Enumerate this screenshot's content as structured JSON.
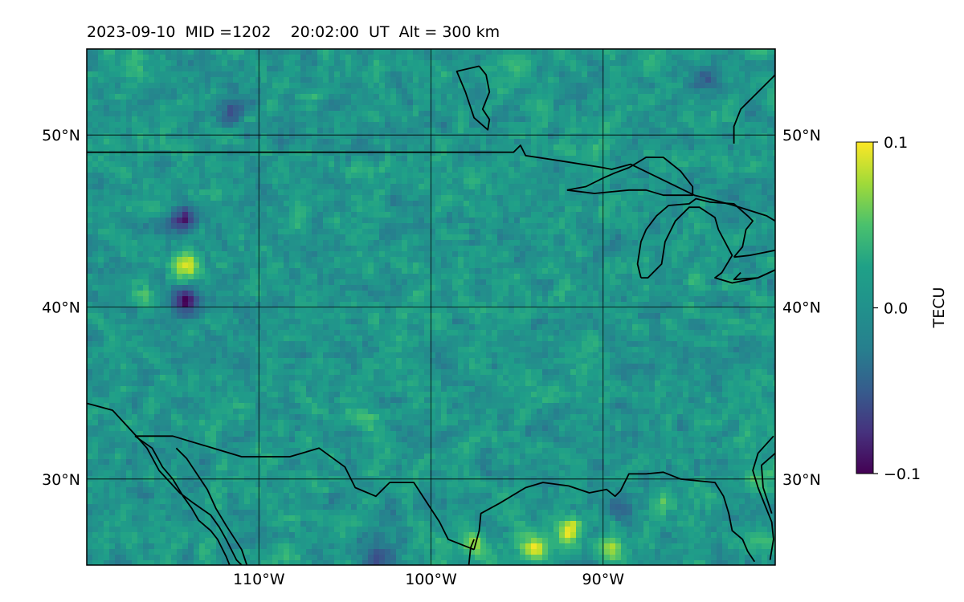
{
  "header": {
    "title": "2023-09-10  MID =1202    20:02:00  UT  Alt = 300 km"
  },
  "chart_data": {
    "type": "heatmap",
    "title": "2023-09-10  MID =1202    20:02:00  UT  Alt = 300 km",
    "map_extent": {
      "lon": [
        -120,
        -80
      ],
      "lat": [
        25,
        55
      ]
    },
    "lon_ticks": [
      {
        "value": -110,
        "label": "110°W"
      },
      {
        "value": -100,
        "label": "100°W"
      },
      {
        "value": -90,
        "label": "90°W"
      }
    ],
    "lat_ticks": [
      {
        "value": 30,
        "label": "30°N"
      },
      {
        "value": 40,
        "label": "40°N"
      },
      {
        "value": 50,
        "label": "50°N"
      }
    ],
    "grid": true,
    "colormap": "viridis",
    "colorbar": {
      "label": "TECU",
      "range": [
        -0.1,
        0.1
      ],
      "ticks": [
        {
          "value": 0.1,
          "label": "0.1"
        },
        {
          "value": 0.0,
          "label": "0.0"
        },
        {
          "value": -0.1,
          "label": "−0.1"
        }
      ]
    },
    "background_value": 0.005,
    "hotspots": [
      {
        "lon": -92.0,
        "lat": 27.0,
        "value": 0.1
      },
      {
        "lon": -94.0,
        "lat": 26.0,
        "value": 0.1
      },
      {
        "lon": -89.5,
        "lat": 26.0,
        "value": 0.08
      },
      {
        "lon": -97.5,
        "lat": 26.2,
        "value": 0.07
      },
      {
        "lon": -114.2,
        "lat": 42.4,
        "value": 0.09
      },
      {
        "lon": -114.3,
        "lat": 40.4,
        "value": -0.1
      },
      {
        "lon": -114.4,
        "lat": 45.1,
        "value": -0.08
      },
      {
        "lon": -111.5,
        "lat": 51.3,
        "value": -0.05
      },
      {
        "lon": -84.0,
        "lat": 53.3,
        "value": -0.05
      },
      {
        "lon": -103.0,
        "lat": 25.5,
        "value": -0.06
      },
      {
        "lon": -108.5,
        "lat": 25.4,
        "value": 0.04
      },
      {
        "lon": -116.5,
        "lat": 40.7,
        "value": 0.05
      },
      {
        "lon": -117.0,
        "lat": 53.7,
        "value": 0.04
      },
      {
        "lon": -95.0,
        "lat": 54.0,
        "value": 0.03
      },
      {
        "lon": -81.0,
        "lat": 30.0,
        "value": 0.05
      },
      {
        "lon": -80.6,
        "lat": 26.5,
        "value": 0.05
      },
      {
        "lon": -89.0,
        "lat": 28.5,
        "value": -0.04
      },
      {
        "lon": -86.5,
        "lat": 28.5,
        "value": 0.05
      },
      {
        "lon": -104.0,
        "lat": 33.5,
        "value": 0.04
      },
      {
        "lon": -97.0,
        "lat": 39.5,
        "value": 0.03
      }
    ],
    "coastlines": [
      [
        [
          -120,
          34.4
        ],
        [
          -118.5,
          34.0
        ],
        [
          -117.3,
          32.7
        ],
        [
          -116.5,
          31.8
        ],
        [
          -115.8,
          30.5
        ],
        [
          -114.6,
          29.2
        ],
        [
          -113.8,
          28.6
        ],
        [
          -112.8,
          27.9
        ],
        [
          -112.3,
          27.2
        ],
        [
          -111.9,
          26.5
        ],
        [
          -111.3,
          25.3
        ],
        [
          -111.0,
          25.0
        ]
      ],
      [
        [
          -117.2,
          32.5
        ],
        [
          -116.2,
          31.8
        ],
        [
          -115.6,
          30.7
        ],
        [
          -115.0,
          30.0
        ],
        [
          -114.4,
          29.0
        ],
        [
          -113.9,
          28.3
        ],
        [
          -113.5,
          27.6
        ],
        [
          -112.8,
          27.0
        ],
        [
          -112.4,
          26.5
        ],
        [
          -111.9,
          25.5
        ],
        [
          -111.7,
          25.0
        ]
      ],
      [
        [
          -114.8,
          31.8
        ],
        [
          -114.2,
          31.2
        ],
        [
          -113.6,
          30.3
        ],
        [
          -113.0,
          29.4
        ],
        [
          -112.5,
          28.3
        ],
        [
          -111.9,
          27.3
        ],
        [
          -111.0,
          25.9
        ],
        [
          -110.7,
          25.0
        ]
      ],
      [
        [
          -117.2,
          32.5
        ],
        [
          -115.0,
          32.5
        ],
        [
          -111.0,
          31.3
        ],
        [
          -108.2,
          31.3
        ],
        [
          -106.5,
          31.8
        ],
        [
          -105.0,
          30.7
        ],
        [
          -104.4,
          29.5
        ],
        [
          -103.2,
          29.0
        ],
        [
          -102.4,
          29.8
        ],
        [
          -101.0,
          29.8
        ],
        [
          -99.5,
          27.5
        ],
        [
          -99.0,
          26.5
        ],
        [
          -97.5,
          25.9
        ]
      ],
      [
        [
          -97.5,
          25.9
        ],
        [
          -97.2,
          27.0
        ],
        [
          -97.1,
          28.0
        ],
        [
          -96.0,
          28.6
        ],
        [
          -94.5,
          29.5
        ],
        [
          -93.5,
          29.8
        ],
        [
          -92.0,
          29.6
        ],
        [
          -90.8,
          29.2
        ],
        [
          -89.8,
          29.4
        ],
        [
          -89.3,
          29.0
        ],
        [
          -89.0,
          29.3
        ],
        [
          -88.5,
          30.3
        ],
        [
          -87.5,
          30.3
        ],
        [
          -86.5,
          30.4
        ],
        [
          -85.5,
          30.0
        ],
        [
          -84.5,
          29.9
        ],
        [
          -83.5,
          29.8
        ],
        [
          -83.0,
          29.0
        ],
        [
          -82.7,
          28.0
        ],
        [
          -82.5,
          27.0
        ],
        [
          -81.9,
          26.5
        ],
        [
          -81.6,
          25.8
        ],
        [
          -81.2,
          25.2
        ]
      ],
      [
        [
          -80.3,
          25.3
        ],
        [
          -80.1,
          26.5
        ],
        [
          -80.2,
          27.5
        ],
        [
          -80.6,
          28.5
        ],
        [
          -81.0,
          29.5
        ],
        [
          -81.3,
          30.5
        ],
        [
          -81.0,
          31.5
        ],
        [
          -80.1,
          32.5
        ]
      ],
      [
        [
          -97.8,
          25.0
        ],
        [
          -97.7,
          26.0
        ],
        [
          -97.5,
          26.5
        ]
      ],
      [
        [
          -120,
          49
        ],
        [
          -95.2,
          49
        ],
        [
          -94.8,
          49.4
        ],
        [
          -94.5,
          48.8
        ],
        [
          -92.5,
          48.5
        ],
        [
          -90.0,
          48.1
        ],
        [
          -89.5,
          48.0
        ],
        [
          -88.4,
          48.3
        ],
        [
          -84.7,
          46.5
        ],
        [
          -83.5,
          46.2
        ],
        [
          -82.4,
          45.9
        ],
        [
          -80.5,
          45.3
        ],
        [
          -80,
          45.0
        ]
      ],
      [
        [
          -92.1,
          46.8
        ],
        [
          -91.0,
          47.0
        ],
        [
          -90.0,
          47.5
        ],
        [
          -89.3,
          47.8
        ],
        [
          -88.5,
          48.1
        ],
        [
          -87.5,
          48.7
        ],
        [
          -86.5,
          48.7
        ],
        [
          -85.5,
          47.9
        ],
        [
          -84.8,
          47.0
        ],
        [
          -84.8,
          46.5
        ],
        [
          -86.5,
          46.5
        ],
        [
          -87.5,
          46.8
        ],
        [
          -88.5,
          46.8
        ],
        [
          -90.5,
          46.6
        ],
        [
          -92.1,
          46.8
        ]
      ],
      [
        [
          -87.8,
          41.7
        ],
        [
          -87.4,
          41.7
        ],
        [
          -86.6,
          42.5
        ],
        [
          -86.4,
          43.8
        ],
        [
          -85.8,
          45.0
        ],
        [
          -85.0,
          45.8
        ],
        [
          -84.4,
          45.8
        ],
        [
          -83.5,
          45.2
        ],
        [
          -83.3,
          44.5
        ],
        [
          -82.5,
          43.0
        ],
        [
          -83.1,
          42.0
        ],
        [
          -83.5,
          41.7
        ],
        [
          -82.5,
          41.4
        ],
        [
          -81.0,
          41.7
        ],
        [
          -79.9,
          42.2
        ]
      ],
      [
        [
          -87.8,
          41.7
        ],
        [
          -88.0,
          42.5
        ],
        [
          -87.8,
          43.8
        ],
        [
          -87.5,
          44.5
        ],
        [
          -86.9,
          45.3
        ],
        [
          -86.2,
          45.9
        ],
        [
          -85.0,
          46.0
        ],
        [
          -84.6,
          46.3
        ],
        [
          -83.8,
          46.1
        ],
        [
          -82.4,
          46.0
        ],
        [
          -81.6,
          45.3
        ],
        [
          -81.3,
          45.0
        ],
        [
          -81.7,
          44.5
        ],
        [
          -81.9,
          43.5
        ],
        [
          -82.4,
          42.9
        ]
      ],
      [
        [
          -79.9,
          42.2
        ],
        [
          -81.0,
          41.7
        ],
        [
          -82.4,
          41.6
        ],
        [
          -82.0,
          42.0
        ]
      ],
      [
        [
          -80.0,
          43.3
        ],
        [
          -81.5,
          43.0
        ],
        [
          -82.4,
          42.9
        ]
      ],
      [
        [
          -80.0,
          55.0
        ],
        [
          -80.0,
          53.5
        ],
        [
          -81.0,
          52.5
        ],
        [
          -82.0,
          51.5
        ],
        [
          -82.4,
          50.5
        ],
        [
          -82.4,
          49.5
        ]
      ],
      [
        [
          -97.2,
          54.0
        ],
        [
          -96.8,
          53.5
        ],
        [
          -96.6,
          52.5
        ],
        [
          -97.0,
          51.5
        ],
        [
          -96.6,
          50.9
        ],
        [
          -96.7,
          50.3
        ],
        [
          -97.5,
          51.0
        ],
        [
          -98.0,
          52.5
        ],
        [
          -98.5,
          53.7
        ],
        [
          -97.2,
          54.0
        ]
      ],
      [
        [
          -80.0,
          31.5
        ],
        [
          -80.8,
          30.8
        ],
        [
          -80.7,
          29.5
        ],
        [
          -80.2,
          28.0
        ]
      ]
    ]
  }
}
